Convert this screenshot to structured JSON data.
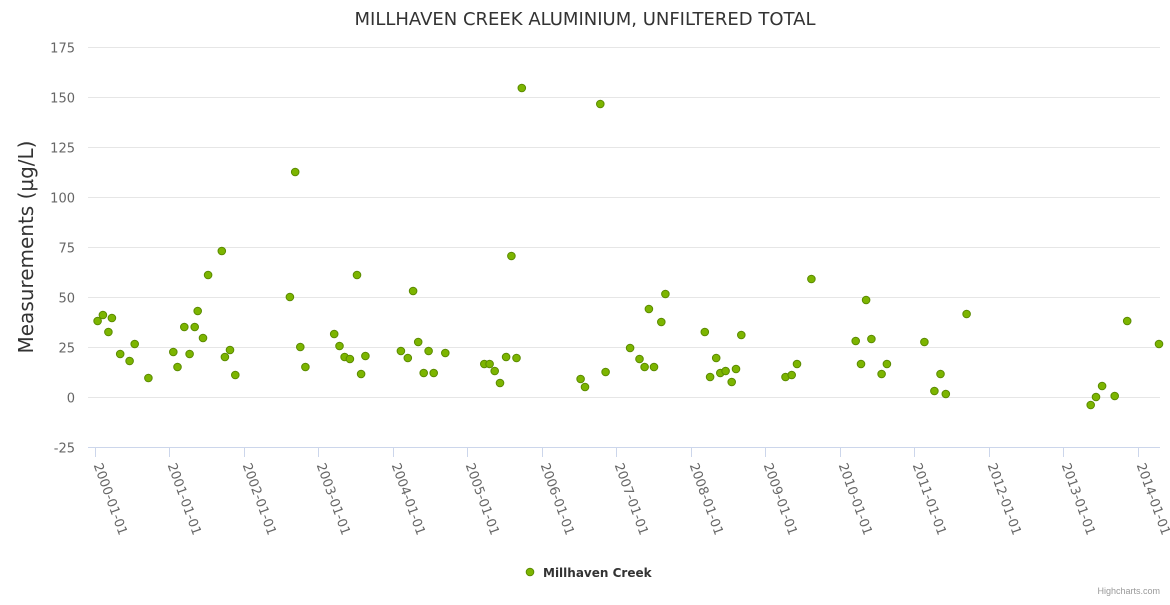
{
  "chart_data": {
    "type": "scatter",
    "title": "MILLHAVEN CREEK ALUMINIUM, UNFILTERED TOTAL",
    "ylabel": "Measurements (µg/L)",
    "xlabel": "",
    "ylim": [
      -25,
      175
    ],
    "y_ticks": [
      -25,
      0,
      25,
      50,
      75,
      100,
      125,
      150,
      175
    ],
    "x_range": [
      "1999-11-29",
      "2014-04-20"
    ],
    "x_ticks": [
      "2000-01-01",
      "2001-01-01",
      "2002-01-01",
      "2003-01-01",
      "2004-01-01",
      "2005-01-01",
      "2006-01-01",
      "2007-01-01",
      "2008-01-01",
      "2009-01-01",
      "2010-01-01",
      "2011-01-01",
      "2012-01-01",
      "2013-01-01",
      "2014-01-01"
    ],
    "grid": true,
    "legend_position": "bottom-center",
    "series": [
      {
        "name": "Millhaven Creek",
        "color": "#7cb500",
        "stroke": "#5a8a00",
        "points": [
          {
            "x": "2000-01-15",
            "y": 38
          },
          {
            "x": "2000-02-10",
            "y": 41
          },
          {
            "x": "2000-03-08",
            "y": 32.5
          },
          {
            "x": "2000-03-25",
            "y": 39.5
          },
          {
            "x": "2000-05-05",
            "y": 21.5
          },
          {
            "x": "2000-06-20",
            "y": 18
          },
          {
            "x": "2000-07-15",
            "y": 26.5
          },
          {
            "x": "2000-09-20",
            "y": 9.5
          },
          {
            "x": "2001-01-20",
            "y": 22.5
          },
          {
            "x": "2001-02-10",
            "y": 15
          },
          {
            "x": "2001-03-15",
            "y": 35
          },
          {
            "x": "2001-04-10",
            "y": 21.5
          },
          {
            "x": "2001-05-05",
            "y": 35
          },
          {
            "x": "2001-05-20",
            "y": 43
          },
          {
            "x": "2001-06-15",
            "y": 29.5
          },
          {
            "x": "2001-07-10",
            "y": 61
          },
          {
            "x": "2001-09-15",
            "y": 73
          },
          {
            "x": "2001-09-30",
            "y": 20
          },
          {
            "x": "2001-10-25",
            "y": 23.5
          },
          {
            "x": "2001-11-20",
            "y": 11
          },
          {
            "x": "2002-08-15",
            "y": 50
          },
          {
            "x": "2002-09-10",
            "y": 112.5
          },
          {
            "x": "2002-10-05",
            "y": 25
          },
          {
            "x": "2002-10-30",
            "y": 15
          },
          {
            "x": "2003-03-20",
            "y": 31.5
          },
          {
            "x": "2003-04-15",
            "y": 25.5
          },
          {
            "x": "2003-05-10",
            "y": 20
          },
          {
            "x": "2003-06-05",
            "y": 19
          },
          {
            "x": "2003-07-10",
            "y": 61
          },
          {
            "x": "2003-07-30",
            "y": 11.5
          },
          {
            "x": "2003-08-20",
            "y": 20.5
          },
          {
            "x": "2004-02-10",
            "y": 23
          },
          {
            "x": "2004-03-15",
            "y": 19.5
          },
          {
            "x": "2004-04-10",
            "y": 53
          },
          {
            "x": "2004-05-05",
            "y": 27.5
          },
          {
            "x": "2004-06-01",
            "y": 12
          },
          {
            "x": "2004-06-25",
            "y": 23
          },
          {
            "x": "2004-07-20",
            "y": 12
          },
          {
            "x": "2004-09-15",
            "y": 22
          },
          {
            "x": "2005-03-25",
            "y": 16.5
          },
          {
            "x": "2005-04-20",
            "y": 16.5
          },
          {
            "x": "2005-05-15",
            "y": 13
          },
          {
            "x": "2005-06-10",
            "y": 7
          },
          {
            "x": "2005-07-10",
            "y": 20
          },
          {
            "x": "2005-08-05",
            "y": 70.5
          },
          {
            "x": "2005-08-30",
            "y": 19.5
          },
          {
            "x": "2005-09-25",
            "y": 154.5
          },
          {
            "x": "2006-07-10",
            "y": 9
          },
          {
            "x": "2006-08-01",
            "y": 5
          },
          {
            "x": "2006-10-15",
            "y": 146.5
          },
          {
            "x": "2006-11-10",
            "y": 12.5
          },
          {
            "x": "2007-03-10",
            "y": 24.5
          },
          {
            "x": "2007-04-25",
            "y": 19
          },
          {
            "x": "2007-05-20",
            "y": 15
          },
          {
            "x": "2007-06-10",
            "y": 44
          },
          {
            "x": "2007-07-05",
            "y": 15
          },
          {
            "x": "2007-08-10",
            "y": 37.5
          },
          {
            "x": "2007-08-30",
            "y": 51.5
          },
          {
            "x": "2008-03-10",
            "y": 32.5
          },
          {
            "x": "2008-04-05",
            "y": 10
          },
          {
            "x": "2008-05-05",
            "y": 19.5
          },
          {
            "x": "2008-05-25",
            "y": 12
          },
          {
            "x": "2008-06-20",
            "y": 13
          },
          {
            "x": "2008-07-20",
            "y": 7.5
          },
          {
            "x": "2008-08-10",
            "y": 14
          },
          {
            "x": "2008-09-05",
            "y": 31
          },
          {
            "x": "2009-04-10",
            "y": 10
          },
          {
            "x": "2009-05-10",
            "y": 11
          },
          {
            "x": "2009-06-05",
            "y": 16.5
          },
          {
            "x": "2009-08-15",
            "y": 59
          },
          {
            "x": "2010-03-20",
            "y": 28
          },
          {
            "x": "2010-04-15",
            "y": 16.5
          },
          {
            "x": "2010-05-10",
            "y": 48.5
          },
          {
            "x": "2010-06-05",
            "y": 29
          },
          {
            "x": "2010-07-25",
            "y": 11.5
          },
          {
            "x": "2010-08-20",
            "y": 16.5
          },
          {
            "x": "2011-02-20",
            "y": 27.5
          },
          {
            "x": "2011-04-10",
            "y": 3
          },
          {
            "x": "2011-05-10",
            "y": 11.5
          },
          {
            "x": "2011-06-05",
            "y": 1.5
          },
          {
            "x": "2011-09-15",
            "y": 41.5
          },
          {
            "x": "2013-05-15",
            "y": -4
          },
          {
            "x": "2013-06-10",
            "y": 0
          },
          {
            "x": "2013-07-10",
            "y": 5.5
          },
          {
            "x": "2013-09-10",
            "y": 0.5
          },
          {
            "x": "2013-11-10",
            "y": 38
          },
          {
            "x": "2014-04-15",
            "y": 26.5
          }
        ]
      }
    ]
  },
  "credits": "Highcharts.com"
}
